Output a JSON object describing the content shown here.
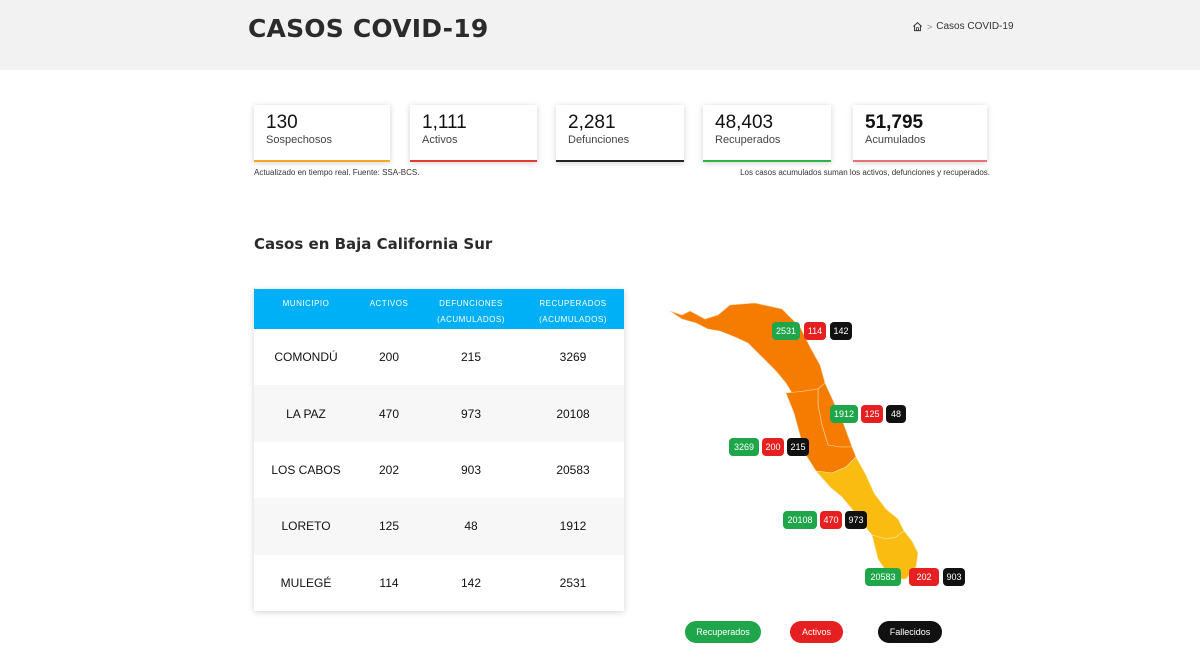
{
  "header": {
    "title": "CASOS COVID-19",
    "breadcrumb": {
      "home_icon": "home-icon",
      "current": "Casos COVID-19"
    }
  },
  "stats": [
    {
      "value": "130",
      "label": "Sospechosos",
      "color": "#f5a623"
    },
    {
      "value": "1,111",
      "label": "Activos",
      "color": "#e53935"
    },
    {
      "value": "2,281",
      "label": "Defunciones",
      "color": "#222222"
    },
    {
      "value": "48,403",
      "label": "Recuperados",
      "color": "#2eb34a"
    },
    {
      "value": "51,795",
      "label": "Acumulados",
      "color": "#e57373"
    }
  ],
  "notes": {
    "left": "Actualizado en tiempo real. Fuente: SSA-BCS.",
    "right": "Los casos acumulados suman los activos, defunciones y recuperados."
  },
  "section_title": "Casos en Baja California Sur",
  "table": {
    "headers": [
      "MUNICIPIO",
      "ACTIVOS",
      "DEFUNCIONES (ACUMULADOS)",
      "RECUPERADOS (ACUMULADOS)"
    ],
    "header_color": "#00b0f6",
    "rows": [
      {
        "municipio": "COMONDÚ",
        "activos": "200",
        "defunciones": "215",
        "recuperados": "3269"
      },
      {
        "municipio": "LA PAZ",
        "activos": "470",
        "defunciones": "973",
        "recuperados": "20108"
      },
      {
        "municipio": "LOS CABOS",
        "activos": "202",
        "defunciones": "903",
        "recuperados": "20583"
      },
      {
        "municipio": "LORETO",
        "activos": "125",
        "defunciones": "48",
        "recuperados": "1912"
      },
      {
        "municipio": "MULEGÉ",
        "activos": "114",
        "defunciones": "142",
        "recuperados": "2531"
      }
    ]
  },
  "map": {
    "colors": {
      "orange": "#f57c00",
      "yellow": "#fbbc12",
      "recuperados": "#1fa64a",
      "activos": "#e62020",
      "fallecidos": "#111111"
    },
    "badges": {
      "mulege": [
        "2531",
        "114",
        "142"
      ],
      "loreto": [
        "1912",
        "125",
        "48"
      ],
      "comondu": [
        "3269",
        "200",
        "215"
      ],
      "la_paz": [
        "20108",
        "470",
        "973"
      ],
      "los_cabos": [
        "20583",
        "202",
        "903"
      ]
    }
  },
  "legend": {
    "recuperados": "Recuperados",
    "activos": "Activos",
    "fallecidos": "Fallecidos"
  }
}
